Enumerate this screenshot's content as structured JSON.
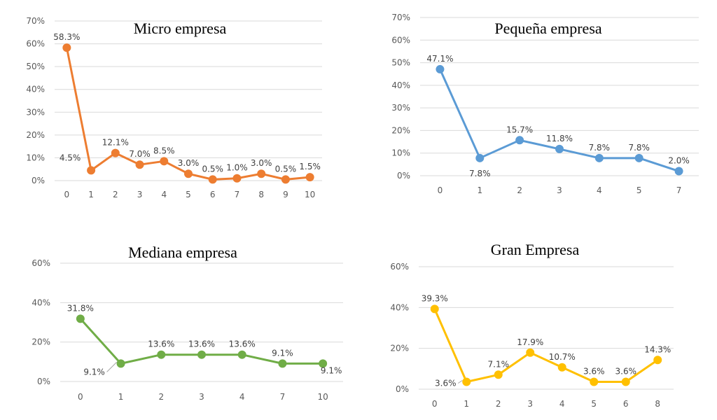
{
  "chart_data": [
    {
      "type": "line",
      "title": "Micro empresa",
      "color": "#ED7D31",
      "categories": [
        "0",
        "1",
        "2",
        "3",
        "4",
        "5",
        "6",
        "7",
        "8",
        "9",
        "10"
      ],
      "values": [
        58.3,
        4.5,
        12.1,
        7.0,
        8.5,
        3.0,
        0.5,
        1.0,
        3.0,
        0.5,
        1.5
      ],
      "data_labels": [
        "58.3%",
        "4.5%",
        "12.1%",
        "7.0%",
        "8.5%",
        "3.0%",
        "0.5%",
        "1.0%",
        "3.0%",
        "0.5%",
        "1.5%"
      ],
      "y_ticks": [
        "0%",
        "10%",
        "20%",
        "30%",
        "40%",
        "50%",
        "60%",
        "70%"
      ],
      "ylim": [
        0,
        70
      ],
      "grid": true
    },
    {
      "type": "line",
      "title": "Pequeña empresa",
      "color": "#5B9BD5",
      "categories": [
        "0",
        "1",
        "2",
        "3",
        "4",
        "5",
        "7"
      ],
      "values": [
        47.1,
        7.8,
        15.7,
        11.8,
        7.8,
        7.8,
        2.0
      ],
      "data_labels": [
        "47.1%",
        "7.8%",
        "15.7%",
        "11.8%",
        "7.8%",
        "7.8%",
        "2.0%"
      ],
      "y_ticks": [
        "0%",
        "10%",
        "20%",
        "30%",
        "40%",
        "50%",
        "60%",
        "70%"
      ],
      "ylim": [
        0,
        70
      ],
      "grid": true
    },
    {
      "type": "line",
      "title": "Mediana empresa",
      "color": "#70AD47",
      "categories": [
        "0",
        "1",
        "2",
        "3",
        "4",
        "7",
        "10"
      ],
      "values": [
        31.8,
        9.1,
        13.6,
        13.6,
        13.6,
        9.1,
        9.1
      ],
      "data_labels": [
        "31.8%",
        "9.1%",
        "13.6%",
        "13.6%",
        "13.6%",
        "9.1%",
        "9.1%"
      ],
      "y_ticks": [
        "0%",
        "20%",
        "40%",
        "60%"
      ],
      "ylim": [
        0,
        60
      ],
      "grid": true
    },
    {
      "type": "line",
      "title": "Gran Empresa",
      "color": "#FFC000",
      "categories": [
        "0",
        "1",
        "2",
        "3",
        "4",
        "5",
        "6",
        "8"
      ],
      "values": [
        39.3,
        3.6,
        7.1,
        17.9,
        10.7,
        3.6,
        3.6,
        14.3
      ],
      "data_labels": [
        "39.3%",
        "3.6%",
        "7.1%",
        "17.9%",
        "10.7%",
        "3.6%",
        "3.6%",
        "14.3%"
      ],
      "y_ticks": [
        "0%",
        "20%",
        "40%",
        "60%"
      ],
      "ylim": [
        0,
        60
      ],
      "grid": true
    }
  ]
}
